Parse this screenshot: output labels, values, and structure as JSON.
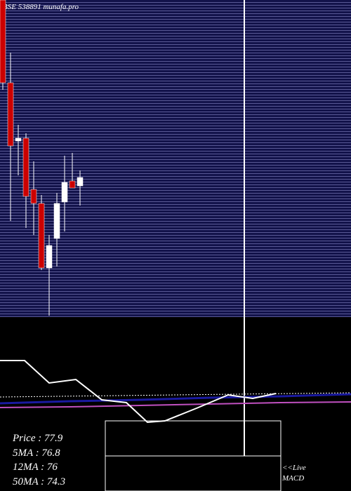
{
  "chart_data": {
    "type": "candlestick",
    "title": "BSE 538891 munafa.pro",
    "open": [
      88,
      83.28,
      79.96,
      80.12,
      77.2,
      76.4,
      72.72,
      74.4,
      76.48,
      77.68,
      77.4
    ],
    "high": [
      88,
      85,
      80.88,
      80.4,
      78.8,
      76.88,
      74.6,
      77,
      79.12,
      79.28,
      78.28
    ],
    "low": [
      82.88,
      75.4,
      78,
      75,
      74.6,
      72.6,
      70,
      72.8,
      74.8,
      77.28,
      76.28
    ],
    "close": [
      83.28,
      79.68,
      80.12,
      76.8,
      76.4,
      72.72,
      74,
      76.4,
      77.6,
      77.28,
      77.88
    ],
    "ylim": [
      70,
      88
    ],
    "up_color": "#ffffff",
    "down_color": "#cc0000",
    "info": [
      "Price   : 77.9",
      "5MA : 76.8",
      "12MA : 76",
      "50MA : 74.3"
    ],
    "live": "<<Live",
    "indicator": "MACD"
  }
}
